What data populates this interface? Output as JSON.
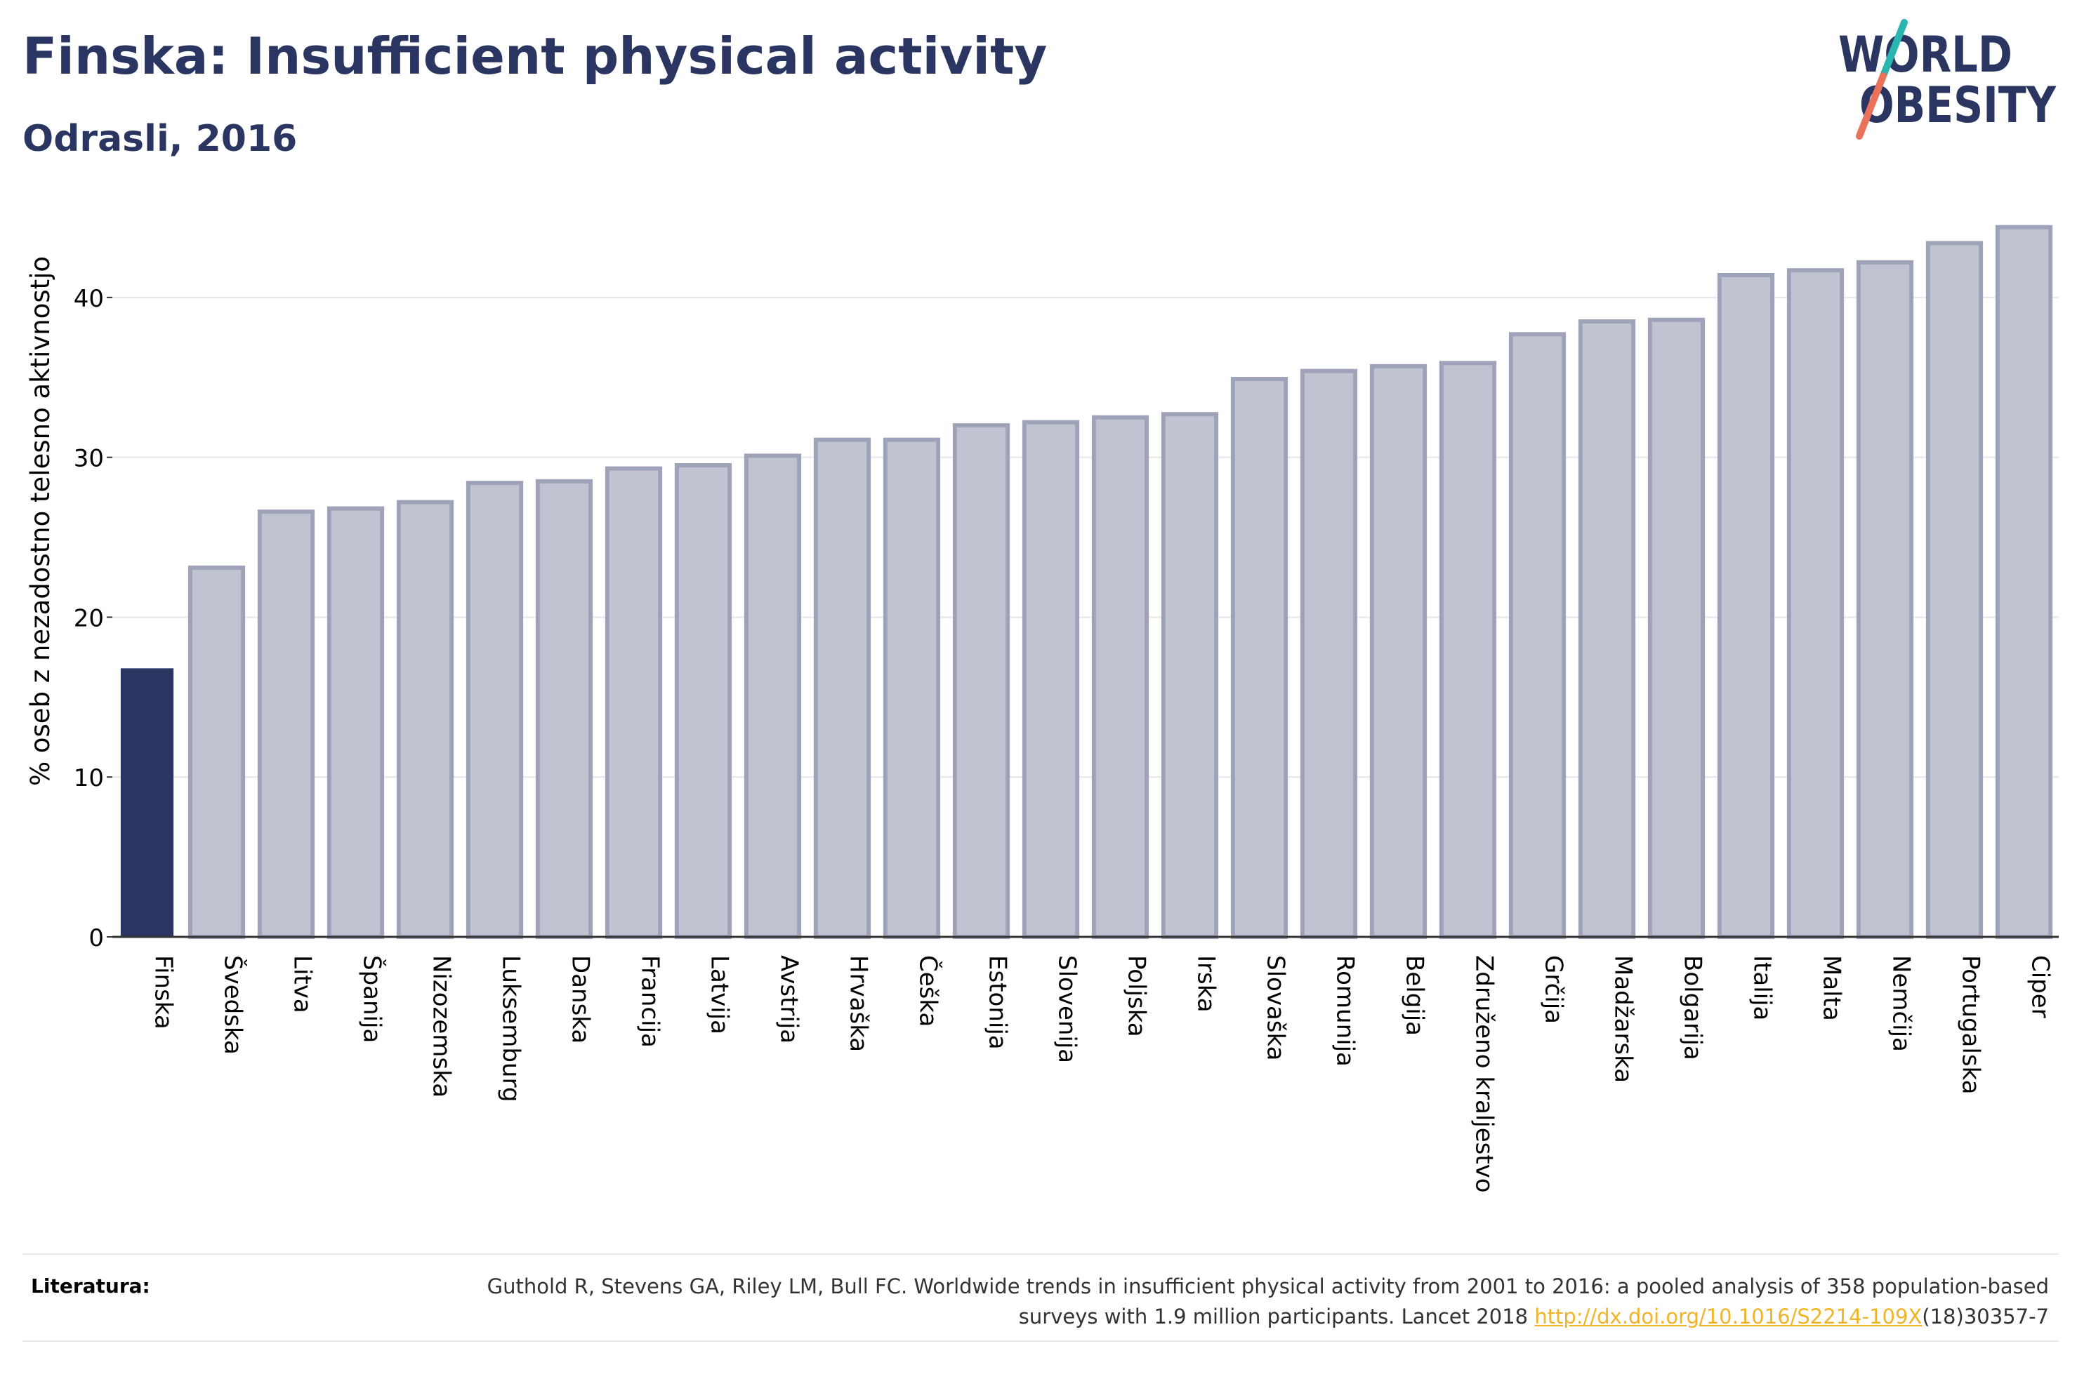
{
  "header": {
    "title": "Finska: Insufficient physical activity",
    "subtitle": "Odrasli, 2016"
  },
  "logo": {
    "line1": "WORLD",
    "line2": "OBESITY",
    "text_color": "#2b3562",
    "slash_color_top": "#2bb5b0",
    "slash_color_bottom": "#e8735a"
  },
  "colors": {
    "highlight_bar": "#2b3562",
    "other_bar_fill": "#c0c3d0",
    "other_bar_stroke": "#9ea3b9",
    "text": "#2b3562",
    "link": "#f0b429"
  },
  "chart_data": {
    "type": "bar",
    "title": "Finska: Insufficient physical activity",
    "subtitle": "Odrasli, 2016",
    "xlabel": "",
    "ylabel": "% oseb z nezadostno telesno aktivnostjo",
    "ylim": [
      0,
      45
    ],
    "yticks": [
      0,
      10,
      20,
      30,
      40
    ],
    "grid": true,
    "highlight": "Finska",
    "categories": [
      "Finska",
      "Švedska",
      "Litva",
      "Španija",
      "Nizozemska",
      "Luksemburg",
      "Danska",
      "Francija",
      "Latvija",
      "Avstrija",
      "Hrvaška",
      "Češka",
      "Estonija",
      "Slovenija",
      "Poljska",
      "Irska",
      "Slovaška",
      "Romunija",
      "Belgija",
      "Združeno kraljestvo",
      "Grčija",
      "Madžarska",
      "Bolgarija",
      "Italija",
      "Malta",
      "Nemčija",
      "Portugalska",
      "Ciper"
    ],
    "values": [
      16.8,
      23.1,
      26.6,
      26.8,
      27.2,
      28.4,
      28.5,
      29.3,
      29.5,
      30.1,
      31.1,
      31.1,
      32.0,
      32.2,
      32.5,
      32.7,
      34.9,
      35.4,
      35.7,
      35.9,
      37.7,
      38.5,
      38.6,
      41.4,
      41.7,
      42.2,
      43.4,
      44.4
    ]
  },
  "footer": {
    "label": "Literatura:",
    "citation_part1": "Guthold R, Stevens GA, Riley LM, Bull FC. Worldwide trends in insufficient physical activity from 2001 to 2016: a pooled analysis of 358 population-based surveys with 1.9 million participants. Lancet 2018 ",
    "link_text": "http://dx.doi.org/10.1016/S2214-109X",
    "citation_part2": "(18)30357-7"
  }
}
